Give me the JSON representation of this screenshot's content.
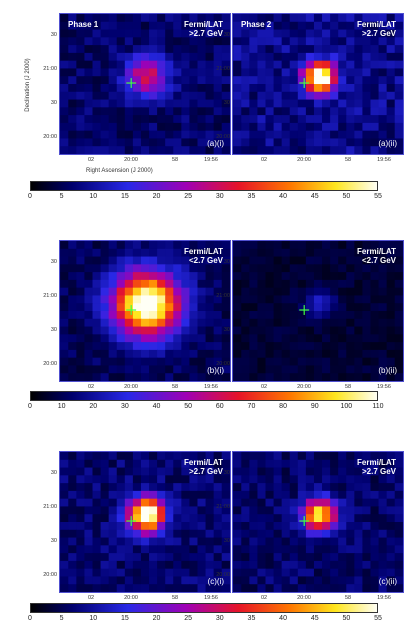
{
  "panels": [
    {
      "phase": "Phase 1",
      "fermi1": "Fermi/LAT",
      "fermi2": ">2.7 GeV",
      "label": "(a)(i)"
    },
    {
      "phase": "Phase 2",
      "fermi1": "Fermi/LAT",
      "fermi2": ">2.7 GeV",
      "label": "(a)(ii)"
    },
    {
      "phase": "",
      "fermi1": "Fermi/LAT",
      "fermi2": "<2.7 GeV",
      "label": "(b)(i)"
    },
    {
      "phase": "",
      "fermi1": "Fermi/LAT",
      "fermi2": "<2.7 GeV",
      "label": "(b)(ii)"
    },
    {
      "phase": "",
      "fermi1": "Fermi/LAT",
      "fermi2": ">2.7 GeV",
      "label": "(c)(i)"
    },
    {
      "phase": "",
      "fermi1": "Fermi/LAT",
      "fermi2": ">2.7 GeV",
      "label": "(c)(ii)"
    }
  ],
  "axes": {
    "ylabel": "Declination (J 2000)",
    "xlabel": "Right Ascension (J 2000)",
    "yticks": [
      "30",
      "21:00",
      "30",
      "20:00"
    ],
    "xticks": [
      "02",
      "20:00",
      "58",
      "19:56"
    ]
  },
  "colorbars": [
    {
      "ticks": [
        "0",
        "5",
        "10",
        "15",
        "20",
        "25",
        "30",
        "35",
        "40",
        "45",
        "50",
        "55"
      ]
    },
    {
      "ticks": [
        "0",
        "10",
        "20",
        "30",
        "40",
        "50",
        "60",
        "70",
        "80",
        "90",
        "100",
        "110"
      ]
    },
    {
      "ticks": [
        "0",
        "5",
        "10",
        "15",
        "20",
        "25",
        "30",
        "35",
        "40",
        "45",
        "50",
        "55"
      ]
    }
  ],
  "heatmaps": [
    {
      "peak": 0.45,
      "spread": 1.0,
      "bg": 0.12
    },
    {
      "peak": 1.0,
      "spread": 0.75,
      "bg": 0.16
    },
    {
      "peak": 1.0,
      "spread": 1.6,
      "bg": 0.1
    },
    {
      "peak": 0.18,
      "spread": 0.7,
      "bg": 0.06
    },
    {
      "peak": 1.0,
      "spread": 0.85,
      "bg": 0.13
    },
    {
      "peak": 0.82,
      "spread": 0.8,
      "bg": 0.12
    }
  ],
  "colors": {
    "marker": "#40ff40",
    "frame": "#5050d0"
  }
}
